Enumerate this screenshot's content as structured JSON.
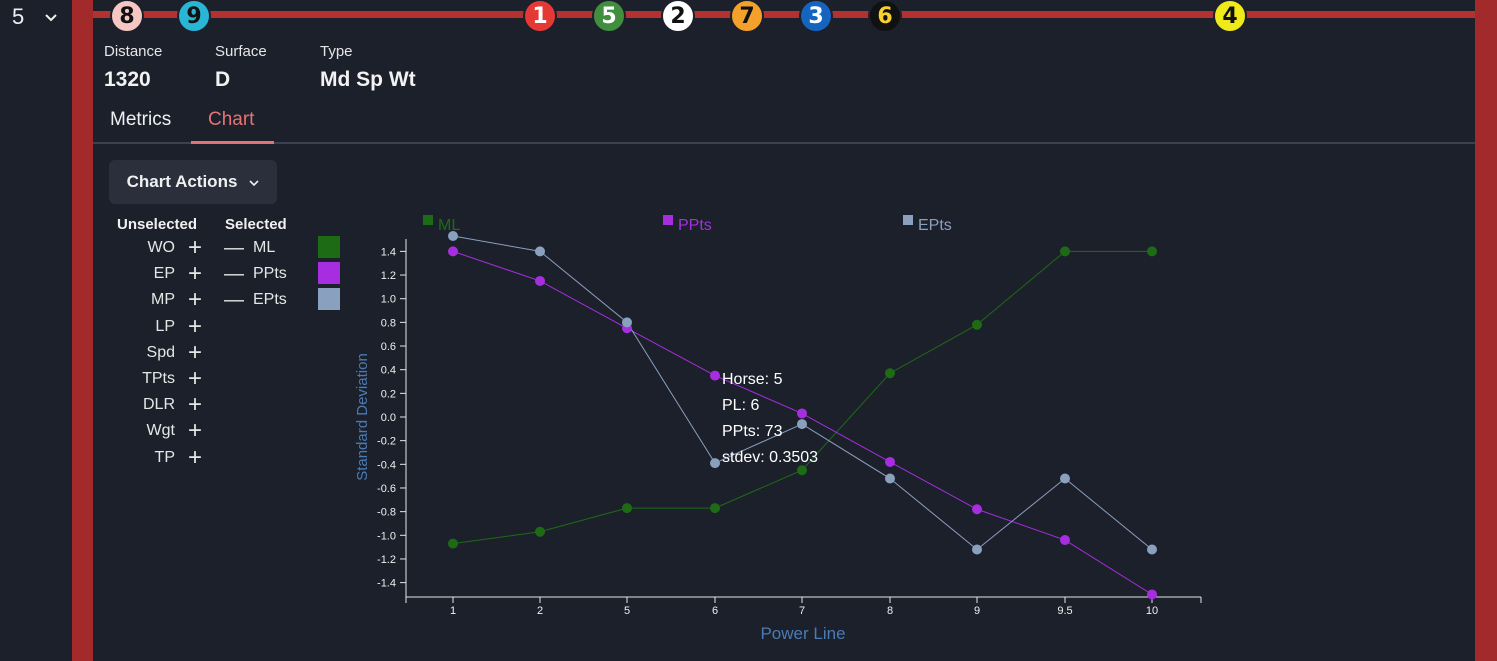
{
  "race": {
    "number": "5"
  },
  "posts": [
    {
      "label": "8",
      "bg": "#f4c7c3",
      "fg": "#111111"
    },
    {
      "label": "9",
      "bg": "#29b6d6",
      "fg": "#111111"
    },
    {
      "label": "1",
      "bg": "#e53935",
      "fg": "#ffffff"
    },
    {
      "label": "5",
      "bg": "#3f8f3f",
      "fg": "#ffffff"
    },
    {
      "label": "2",
      "bg": "#ffffff",
      "fg": "#111111"
    },
    {
      "label": "7",
      "bg": "#f3a12a",
      "fg": "#111111"
    },
    {
      "label": "3",
      "bg": "#1565c0",
      "fg": "#ffffff"
    },
    {
      "label": "6",
      "bg": "#111111",
      "fg": "#f7d12e"
    },
    {
      "label": "4",
      "bg": "#f0ea1a",
      "fg": "#111111"
    }
  ],
  "info": {
    "distance_label": "Distance",
    "distance": "1320",
    "surface_label": "Surface",
    "surface": "D",
    "type_label": "Type",
    "type": "Md Sp Wt"
  },
  "tabs": {
    "metrics": "Metrics",
    "chart": "Chart",
    "active": "Chart",
    "active_color": "#e57373"
  },
  "actions": {
    "label": "Chart Actions"
  },
  "metrics": {
    "unselected_header": "Unselected",
    "selected_header": "Selected",
    "unselected": [
      "WO",
      "EP",
      "MP",
      "LP",
      "Spd",
      "TPts",
      "DLR",
      "Wgt",
      "TP"
    ],
    "selected": [
      {
        "label": "ML",
        "color": "#1e6b16"
      },
      {
        "label": "PPts",
        "color": "#a62ee0"
      },
      {
        "label": "EPts",
        "color": "#8aa0bf"
      }
    ]
  },
  "chart_data": {
    "type": "line",
    "categories": [
      "1",
      "2",
      "5",
      "6",
      "7",
      "8",
      "9",
      "9.5",
      "10"
    ],
    "xlabel": "Power Line",
    "ylabel": "Standard Deviation",
    "ylim": [
      -1.5,
      1.5
    ],
    "yticks": [
      "1.4",
      "1.2",
      "1.0",
      "0.8",
      "0.6",
      "0.4",
      "0.2",
      "0.0",
      "-0.2",
      "-0.4",
      "-0.6",
      "-0.8",
      "-1.0",
      "-1.2",
      "-1.4"
    ],
    "series": [
      {
        "name": "ML",
        "color": "#1e6b16",
        "values": [
          -1.07,
          -0.97,
          -0.77,
          -0.77,
          -0.45,
          0.37,
          0.78,
          1.4,
          1.4
        ]
      },
      {
        "name": "PPts",
        "color": "#a62ee0",
        "values": [
          1.4,
          1.15,
          0.75,
          0.35,
          0.03,
          -0.38,
          -0.78,
          -1.04,
          -1.5
        ]
      },
      {
        "name": "EPts",
        "color": "#8aa0bf",
        "values": [
          1.53,
          1.4,
          0.8,
          -0.39,
          -0.06,
          -0.52,
          -1.12,
          -0.52,
          -1.12
        ]
      }
    ],
    "tooltip": {
      "lines": [
        "Horse: 5",
        "PL: 6",
        "PPts: 73",
        "stdev: 0.3503"
      ]
    }
  }
}
